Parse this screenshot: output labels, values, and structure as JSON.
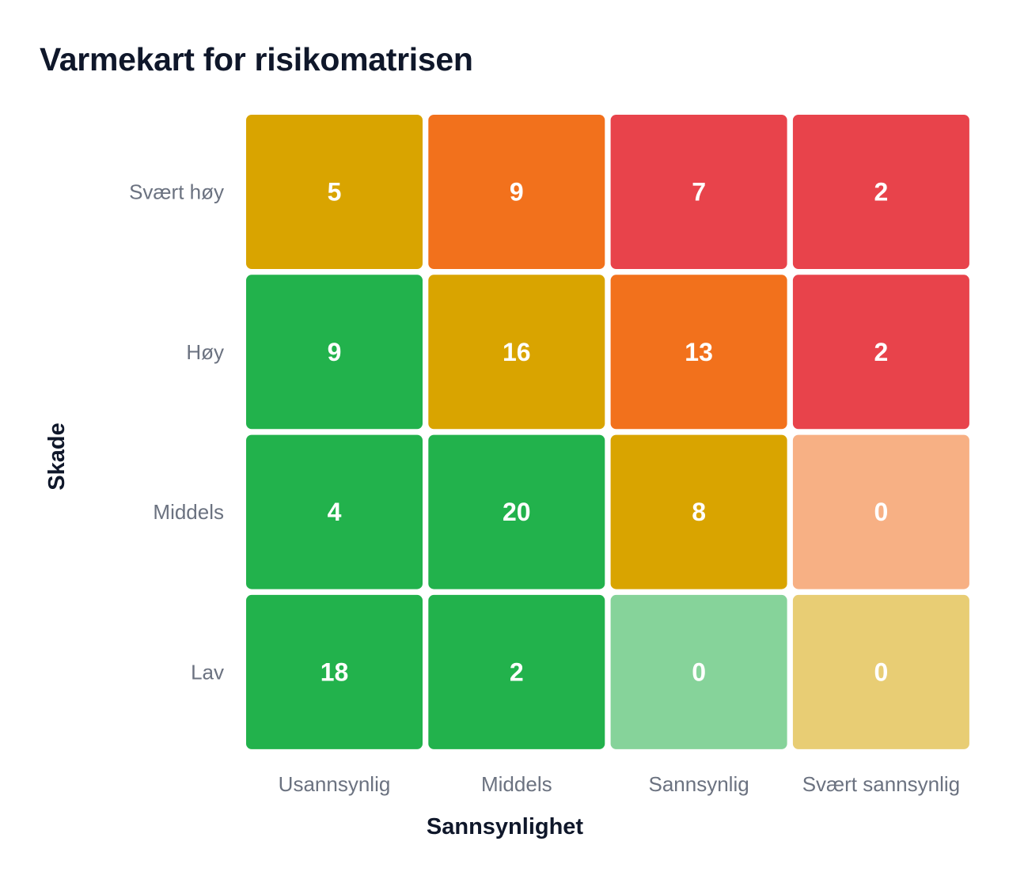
{
  "chart_data": {
    "type": "heatmap",
    "title": "Varmekart for risikomatrisen",
    "xlabel": "Sannsynlighet",
    "ylabel": "Skade",
    "x_categories": [
      "Usannsynlig",
      "Middels",
      "Sannsynlig",
      "Svært sannsynlig"
    ],
    "y_categories": [
      "Svært høy",
      "Høy",
      "Middels",
      "Lav"
    ],
    "values": [
      [
        5,
        9,
        7,
        2
      ],
      [
        9,
        16,
        13,
        2
      ],
      [
        4,
        20,
        8,
        0
      ],
      [
        18,
        2,
        0,
        0
      ]
    ],
    "cell_colors": [
      [
        "#d9a400",
        "#f2711c",
        "#e8434b",
        "#e8434b"
      ],
      [
        "#22b24c",
        "#d9a400",
        "#f2711c",
        "#e8434b"
      ],
      [
        "#22b24c",
        "#22b24c",
        "#d9a400",
        "#f7b084"
      ],
      [
        "#22b24c",
        "#22b24c",
        "#86d39a",
        "#e8cd74"
      ]
    ],
    "legend": "none"
  }
}
